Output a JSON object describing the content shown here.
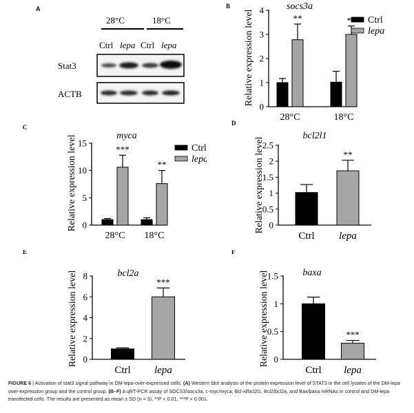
{
  "panel_a": {
    "letter": "A",
    "temps": [
      "28°C",
      "18°C"
    ],
    "lanes": [
      "Ctrl",
      "lepa",
      "Ctrl",
      "lepa"
    ],
    "rows": [
      "Stat3",
      "ACTB"
    ]
  },
  "chart_data": [
    {
      "panel": "B",
      "type": "bar",
      "title": "socs3a",
      "ylabel": "Relative expression level",
      "categories": [
        "28°C",
        "18°C"
      ],
      "series": [
        {
          "name": "Ctrl",
          "values": [
            1.0,
            1.02
          ],
          "errors": [
            0.17,
            0.45
          ],
          "sig": [
            "",
            ""
          ]
        },
        {
          "name": "lepa",
          "values": [
            2.78,
            3.0
          ],
          "errors": [
            0.65,
            0.35
          ],
          "sig": [
            "**",
            "**"
          ]
        }
      ],
      "ylim": [
        0,
        4
      ],
      "yticks": [
        0,
        1,
        2,
        3,
        4
      ],
      "legend": [
        "Ctrl",
        "lepa"
      ]
    },
    {
      "panel": "C",
      "type": "bar",
      "title": "myca",
      "ylabel": "Relative expression level",
      "categories": [
        "28°C",
        "18°C"
      ],
      "series": [
        {
          "name": "Ctrl",
          "values": [
            1.0,
            1.0
          ],
          "errors": [
            0.2,
            0.35
          ],
          "sig": [
            "",
            ""
          ]
        },
        {
          "name": "lepa",
          "values": [
            10.6,
            7.6
          ],
          "errors": [
            2.2,
            2.4
          ],
          "sig": [
            "***",
            "**"
          ]
        }
      ],
      "ylim": [
        0,
        15
      ],
      "yticks": [
        0,
        5,
        10,
        15
      ],
      "legend": [
        "Ctrl",
        "lepa"
      ]
    },
    {
      "panel": "D",
      "type": "bar",
      "title": "bcl2l1",
      "ylabel": "Relative expression level",
      "categories": [
        "Ctrl",
        "lepa"
      ],
      "values": [
        1.02,
        1.7
      ],
      "errors": [
        0.25,
        0.33
      ],
      "sig": [
        "",
        "**"
      ],
      "colors": [
        "#000000",
        "#a6a6a6"
      ],
      "ylim": [
        0,
        2.5
      ],
      "yticks": [
        0,
        0.5,
        1,
        1.5,
        2,
        2.5
      ]
    },
    {
      "panel": "E",
      "type": "bar",
      "title": "bcl2a",
      "ylabel": "Relative expression level",
      "categories": [
        "Ctrl",
        "lepa"
      ],
      "values": [
        1.0,
        6.0
      ],
      "errors": [
        0.1,
        0.85
      ],
      "sig": [
        "",
        "***"
      ],
      "colors": [
        "#000000",
        "#a6a6a6"
      ],
      "ylim": [
        0,
        8
      ],
      "yticks": [
        0,
        2,
        4,
        6,
        8
      ]
    },
    {
      "panel": "F",
      "type": "bar",
      "title": "baxa",
      "ylabel": "Relative expression level",
      "categories": [
        "Ctrl",
        "lepa"
      ],
      "values": [
        1.0,
        0.29
      ],
      "errors": [
        0.12,
        0.05
      ],
      "sig": [
        "",
        "***"
      ],
      "colors": [
        "#000000",
        "#a6a6a6"
      ],
      "ylim": [
        0,
        1.5
      ],
      "yticks": [
        0,
        0.5,
        1,
        1.5
      ]
    }
  ],
  "caption": {
    "label": "FIGURE 6",
    "sep": " | ",
    "intro": "Activation of stat3 signal pathway in DM-lepa-over-expressed cells.",
    "a_tag": "(A)",
    "a_text": "Western blot analysis of the protein expression level of STAT3 in the cell lysates of the DM-lepa over-expression group and the control group.",
    "bf_tag": "(B–F)",
    "bf_text": "A qRT-PCR assay of SOCS3/socs3a, c-myc/myca, Bcl-xl/bcl2l1, Bcl2/bcl2a, and Bax/baxa mRNAs in control and DM-lepa transfected cells. The results are presented as mean ± SD (n = 3), **P < 0.01, ***P < 0.001."
  },
  "colors": {
    "ctrl": "#000000",
    "lepa": "#a6a6a6"
  }
}
